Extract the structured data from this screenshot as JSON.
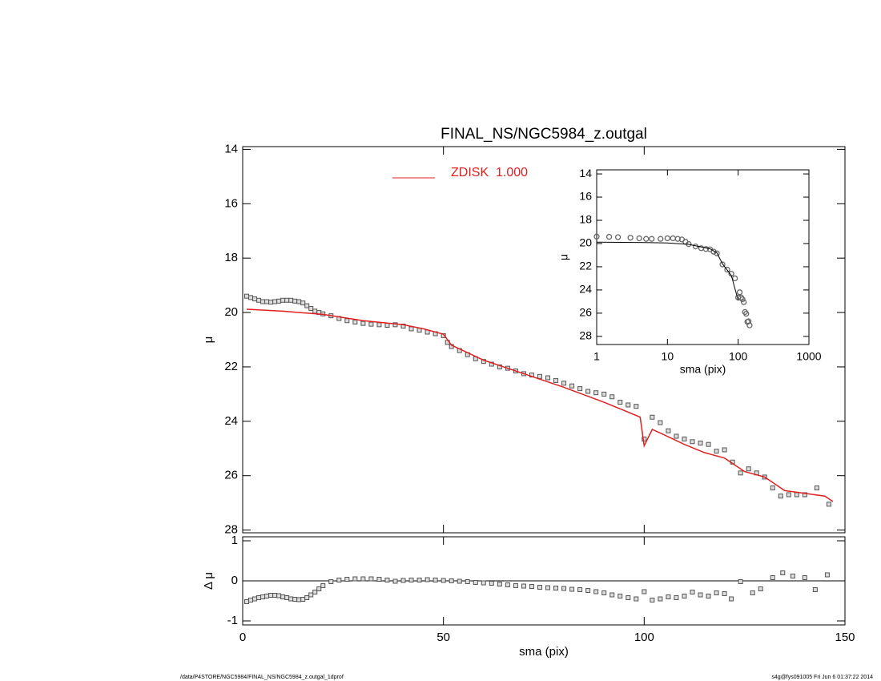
{
  "chart_data": [
    {
      "type": "scatter",
      "title": "FINAL_NS/NGC5984_z.outgal",
      "ylabel": "μ",
      "xlim": [
        0,
        150
      ],
      "ylim": [
        28.1,
        13.9
      ],
      "xticks": [
        0,
        50,
        100,
        150
      ],
      "yticks": [
        14,
        16,
        18,
        20,
        22,
        24,
        26,
        28
      ],
      "xtick_labels": false,
      "legend": "top",
      "series": [
        {
          "marker": "square",
          "color": "#555555",
          "x": [
            1,
            2,
            3,
            4,
            5,
            6,
            7,
            8,
            9,
            10,
            11,
            12,
            13,
            14,
            15,
            16,
            17,
            18,
            19,
            20,
            22,
            24,
            26,
            28,
            30,
            32,
            34,
            36,
            38,
            40,
            42,
            44,
            46,
            48,
            50,
            51,
            52,
            54,
            56,
            58,
            60,
            62,
            64,
            66,
            68,
            70,
            72,
            74,
            76,
            78,
            80,
            82,
            84,
            86,
            88,
            90,
            92,
            94,
            96,
            98,
            100,
            102,
            104,
            106,
            108,
            110,
            112,
            114,
            116,
            118,
            120,
            122,
            124,
            126,
            128,
            130,
            132,
            134,
            136,
            138,
            140,
            143,
            146
          ],
          "values": [
            19.4,
            19.45,
            19.5,
            19.55,
            19.6,
            19.6,
            19.62,
            19.6,
            19.58,
            19.55,
            19.55,
            19.55,
            19.58,
            19.6,
            19.65,
            19.75,
            19.85,
            19.95,
            20.0,
            20.05,
            20.12,
            20.22,
            20.3,
            20.35,
            20.4,
            20.43,
            20.45,
            20.47,
            20.45,
            20.5,
            20.6,
            20.65,
            20.72,
            20.78,
            20.85,
            21.1,
            21.25,
            21.4,
            21.55,
            21.7,
            21.8,
            21.9,
            22.0,
            22.05,
            22.15,
            22.25,
            22.3,
            22.35,
            22.4,
            22.5,
            22.6,
            22.7,
            22.8,
            22.9,
            22.95,
            23.0,
            23.1,
            23.3,
            23.4,
            23.45,
            24.65,
            23.85,
            24.05,
            24.35,
            24.55,
            24.65,
            24.75,
            24.8,
            24.85,
            25.1,
            25.05,
            25.5,
            25.9,
            25.75,
            25.9,
            26.05,
            26.45,
            26.75,
            26.7,
            26.7,
            26.7,
            26.45,
            27.05
          ]
        },
        {
          "name": "ZDISK  1.000",
          "marker": "line",
          "color": "#e02020",
          "x": [
            1,
            10,
            20,
            30,
            40,
            45,
            50,
            52,
            60,
            70,
            80,
            90,
            95,
            99,
            100,
            102,
            105,
            110,
            115,
            120,
            125,
            130,
            135,
            140,
            145,
            147
          ],
          "values": [
            19.88,
            19.95,
            20.07,
            20.3,
            20.45,
            20.6,
            20.8,
            21.2,
            21.75,
            22.25,
            22.75,
            23.3,
            23.6,
            23.85,
            24.9,
            24.3,
            24.5,
            24.85,
            25.15,
            25.35,
            25.85,
            26.05,
            26.55,
            26.65,
            26.75,
            26.95
          ]
        }
      ]
    },
    {
      "type": "scatter",
      "xlabel": "sma (pix)",
      "ylabel": "Δ μ",
      "xlim": [
        0,
        150
      ],
      "ylim": [
        -1.1,
        1.1
      ],
      "xticks": [
        0,
        50,
        100,
        150
      ],
      "yticks": [
        -1,
        0,
        1
      ],
      "xtick_labels": true,
      "hline": 0,
      "series": [
        {
          "marker": "square",
          "color": "#555555",
          "x": [
            1,
            2,
            3,
            4,
            5,
            6,
            7,
            8,
            9,
            10,
            11,
            12,
            13,
            14,
            15,
            16,
            17,
            18,
            19,
            20,
            22,
            24,
            26,
            28,
            30,
            32,
            34,
            36,
            38,
            40,
            42,
            44,
            46,
            48,
            50,
            52,
            54,
            56,
            58,
            60,
            62,
            64,
            66,
            68,
            70,
            72,
            74,
            76,
            78,
            80,
            82,
            84,
            86,
            88,
            90,
            92,
            94,
            96,
            98,
            100,
            102,
            104,
            106,
            108,
            110,
            112,
            114,
            116,
            118,
            120,
            121.7,
            124,
            127,
            129,
            132,
            134.5,
            137,
            140,
            142.6,
            145.6
          ],
          "values": [
            -0.52,
            -0.48,
            -0.45,
            -0.42,
            -0.4,
            -0.38,
            -0.36,
            -0.36,
            -0.37,
            -0.4,
            -0.42,
            -0.45,
            -0.46,
            -0.47,
            -0.46,
            -0.42,
            -0.35,
            -0.28,
            -0.2,
            -0.12,
            -0.02,
            0.02,
            0.04,
            0.05,
            0.05,
            0.05,
            0.04,
            0.02,
            -0.01,
            0.01,
            0.02,
            0.02,
            0.03,
            0.02,
            0.01,
            0.0,
            -0.01,
            -0.02,
            -0.04,
            -0.05,
            -0.06,
            -0.08,
            -0.1,
            -0.12,
            -0.13,
            -0.14,
            -0.16,
            -0.17,
            -0.18,
            -0.19,
            -0.21,
            -0.22,
            -0.24,
            -0.27,
            -0.3,
            -0.35,
            -0.38,
            -0.42,
            -0.45,
            -0.27,
            -0.48,
            -0.45,
            -0.4,
            -0.42,
            -0.38,
            -0.28,
            -0.35,
            -0.38,
            -0.3,
            -0.32,
            -0.45,
            -0.02,
            -0.3,
            -0.2,
            0.08,
            0.2,
            0.12,
            0.08,
            -0.22,
            0.15
          ]
        }
      ]
    },
    {
      "type": "scatter",
      "xlabel": "sma (pix)",
      "ylabel": "μ",
      "log_x": true,
      "xlim": [
        1,
        1000
      ],
      "ylim": [
        28.7,
        13.65
      ],
      "xticks": [
        1,
        10,
        100,
        1000
      ],
      "yticks": [
        14,
        16,
        18,
        20,
        22,
        24,
        26,
        28
      ],
      "xtick_labels": true,
      "series": [
        {
          "marker": "circle",
          "color": "#666666",
          "x": [
            1,
            1.5,
            2,
            3,
            4,
            5,
            6,
            8,
            10,
            12,
            14,
            16,
            18,
            20,
            25,
            30,
            35,
            40,
            45,
            50,
            60,
            70,
            80,
            90,
            100,
            105,
            110,
            115,
            120,
            125,
            130,
            135,
            140,
            145
          ],
          "values": [
            19.4,
            19.42,
            19.45,
            19.5,
            19.55,
            19.6,
            19.6,
            19.6,
            19.55,
            19.55,
            19.6,
            19.65,
            19.85,
            20.05,
            20.25,
            20.4,
            20.47,
            20.5,
            20.7,
            20.85,
            21.8,
            22.25,
            22.6,
            23.0,
            24.65,
            24.2,
            24.65,
            24.8,
            25.05,
            25.9,
            26.05,
            26.75,
            26.7,
            27.05
          ]
        },
        {
          "marker": "line",
          "color": "#000000",
          "x": [
            1,
            5,
            10,
            20,
            30,
            40,
            50,
            60,
            80,
            100
          ],
          "values": [
            19.88,
            19.92,
            19.95,
            20.07,
            20.3,
            20.45,
            20.8,
            21.75,
            22.75,
            24.9
          ]
        }
      ]
    }
  ],
  "footer_left": "/data/P4STORE/NGC5984/FINAL_NS/NGC5984_z.outgal_1dprof",
  "footer_right": "s4g@fys091005  Fri Jun  6 01:37:22 2014"
}
